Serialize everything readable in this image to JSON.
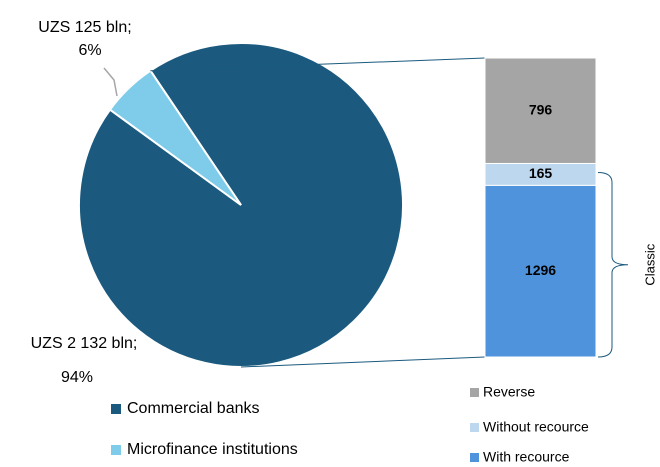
{
  "chart_data": [
    {
      "type": "pie",
      "categories": [
        "Commercial banks",
        "Microfinance institutions"
      ],
      "values": [
        2132,
        125
      ],
      "value_labels": [
        [
          "UZS 2 132   bln;",
          "94%"
        ],
        [
          "UZS 125   bln;",
          "6%"
        ]
      ],
      "colors": [
        "#1b5a7e",
        "#7fcbea"
      ]
    },
    {
      "type": "stacked_bar",
      "series": [
        {
          "name": "Reverse",
          "color": "#a5a5a5",
          "values": [
            796
          ]
        },
        {
          "name": "Without recource",
          "color": "#bdd7ee",
          "values": [
            165
          ]
        },
        {
          "name": "With recource",
          "color": "#4f93dc",
          "values": [
            1296
          ]
        }
      ],
      "annotation": "Classic"
    }
  ]
}
